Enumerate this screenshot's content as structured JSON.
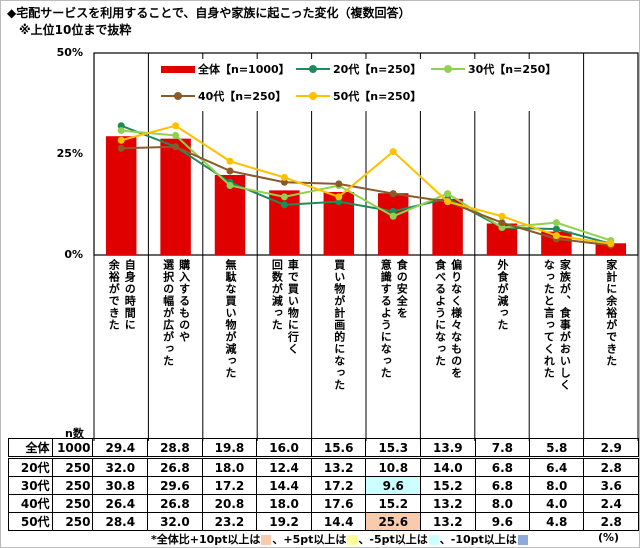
{
  "title": "◆宅配サービスを利用することで、自身や家族に起こった変化（複数回答）",
  "subtitle": "※上位10位まで抜粋",
  "chart_data": {
    "type": "bar+line",
    "ylim": [
      0,
      50
    ],
    "yticks": [
      "0%",
      "25%",
      "50%"
    ],
    "ytick_values": [
      0,
      25,
      50
    ],
    "categories": [
      "自身の時間に\n余裕ができた",
      "購入するものや\n選択の幅が広がった",
      "無駄な買い物が減った",
      "車で買い物に行く\n回数が減った",
      "買い物が計画的になった",
      "食の安全を\n意識するようになった",
      "偏りなく様々なものを\n食べるようになった",
      "外食が減った",
      "家族が、食事がおいしく\nなったと言ってくれた",
      "家計に余裕ができた"
    ],
    "series": [
      {
        "name": "全体【n=1000】",
        "group": "全体",
        "n": "1000",
        "kind": "bar",
        "color": "#e00000",
        "values": [
          29.4,
          28.8,
          19.8,
          16.0,
          15.6,
          15.3,
          13.9,
          7.8,
          5.8,
          2.9
        ]
      },
      {
        "name": "20代【n=250】",
        "group": "20代",
        "n": "250",
        "kind": "line",
        "color": "#1e8c5a",
        "values": [
          32.0,
          26.8,
          18.0,
          12.4,
          13.2,
          10.8,
          14.0,
          6.8,
          6.4,
          2.8
        ]
      },
      {
        "name": "30代【n=250】",
        "group": "30代",
        "n": "250",
        "kind": "line",
        "color": "#92d050",
        "values": [
          30.8,
          29.6,
          17.2,
          14.4,
          17.2,
          9.6,
          15.2,
          6.8,
          8.0,
          3.6
        ]
      },
      {
        "name": "40代【n=250】",
        "group": "40代",
        "n": "250",
        "kind": "line",
        "color": "#8b5a2b",
        "values": [
          26.4,
          26.8,
          20.8,
          18.0,
          17.6,
          15.2,
          13.2,
          8.0,
          4.0,
          2.4
        ]
      },
      {
        "name": "50代【n=250】",
        "group": "50代",
        "n": "250",
        "kind": "line",
        "color": "#ffc000",
        "values": [
          28.4,
          32.0,
          23.2,
          19.2,
          14.4,
          25.6,
          13.2,
          9.6,
          4.8,
          2.8
        ]
      }
    ],
    "highlights": [
      {
        "series": 2,
        "index": 5,
        "color": "#ccffff"
      },
      {
        "series": 4,
        "index": 5,
        "color": "#f8cbad"
      }
    ]
  },
  "table": {
    "n_label": "n数"
  },
  "footnote": {
    "prefix": "*全体比+10pt以上は",
    "p5": "、+5pt以上は",
    "m5": "、-5pt以上は",
    "m10": "、-10pt以上は",
    "colors": [
      "#f8cbad",
      "#ffff99",
      "#ccffff",
      "#8eaadb"
    ]
  },
  "unit": "(%)"
}
